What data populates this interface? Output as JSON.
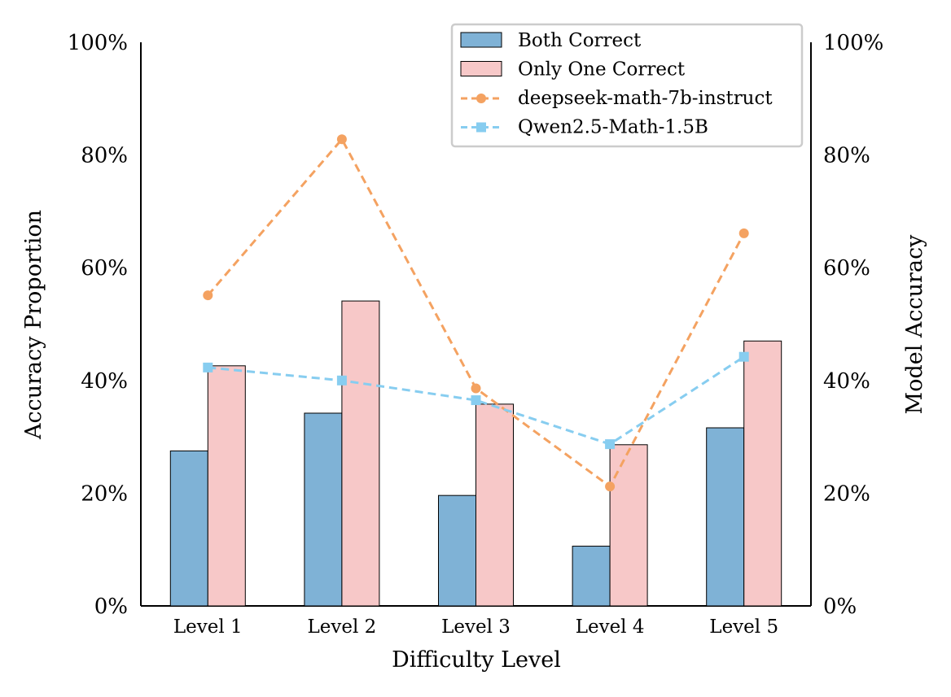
{
  "chart_data": {
    "type": "bar",
    "title": "",
    "xlabel": "Difficulty Level",
    "ylabel": "Accuracy Proportion",
    "y2label": "Model Accuracy",
    "ylim": [
      0,
      100
    ],
    "y2lim": [
      0,
      100
    ],
    "yticks": [
      "0%",
      "20%",
      "40%",
      "60%",
      "80%",
      "100%"
    ],
    "y2ticks": [
      "0%",
      "20%",
      "40%",
      "60%",
      "80%",
      "100%"
    ],
    "grid": false,
    "legend_position": "top-right",
    "categories": [
      "Level 1",
      "Level 2",
      "Level 3",
      "Level 4",
      "Level 5"
    ],
    "bar_series": [
      {
        "name": "Both Correct",
        "values": [
          27.5,
          34.2,
          19.6,
          10.6,
          31.6
        ],
        "color": "#7fb2d6"
      },
      {
        "name": "Only One Correct",
        "values": [
          42.6,
          54.1,
          35.8,
          28.6,
          47.0
        ],
        "color": "#f7c8c8"
      }
    ],
    "line_series": [
      {
        "name": "deepseek-math-7b-instruct",
        "axis": "right",
        "values": [
          55.1,
          82.8,
          38.6,
          21.2,
          66.1
        ],
        "color": "#f4a261",
        "marker": "circle"
      },
      {
        "name": "Qwen2.5-Math-1.5B",
        "axis": "right",
        "values": [
          42.3,
          40.0,
          36.5,
          28.7,
          44.2
        ],
        "color": "#87cdf0",
        "marker": "square"
      }
    ]
  }
}
